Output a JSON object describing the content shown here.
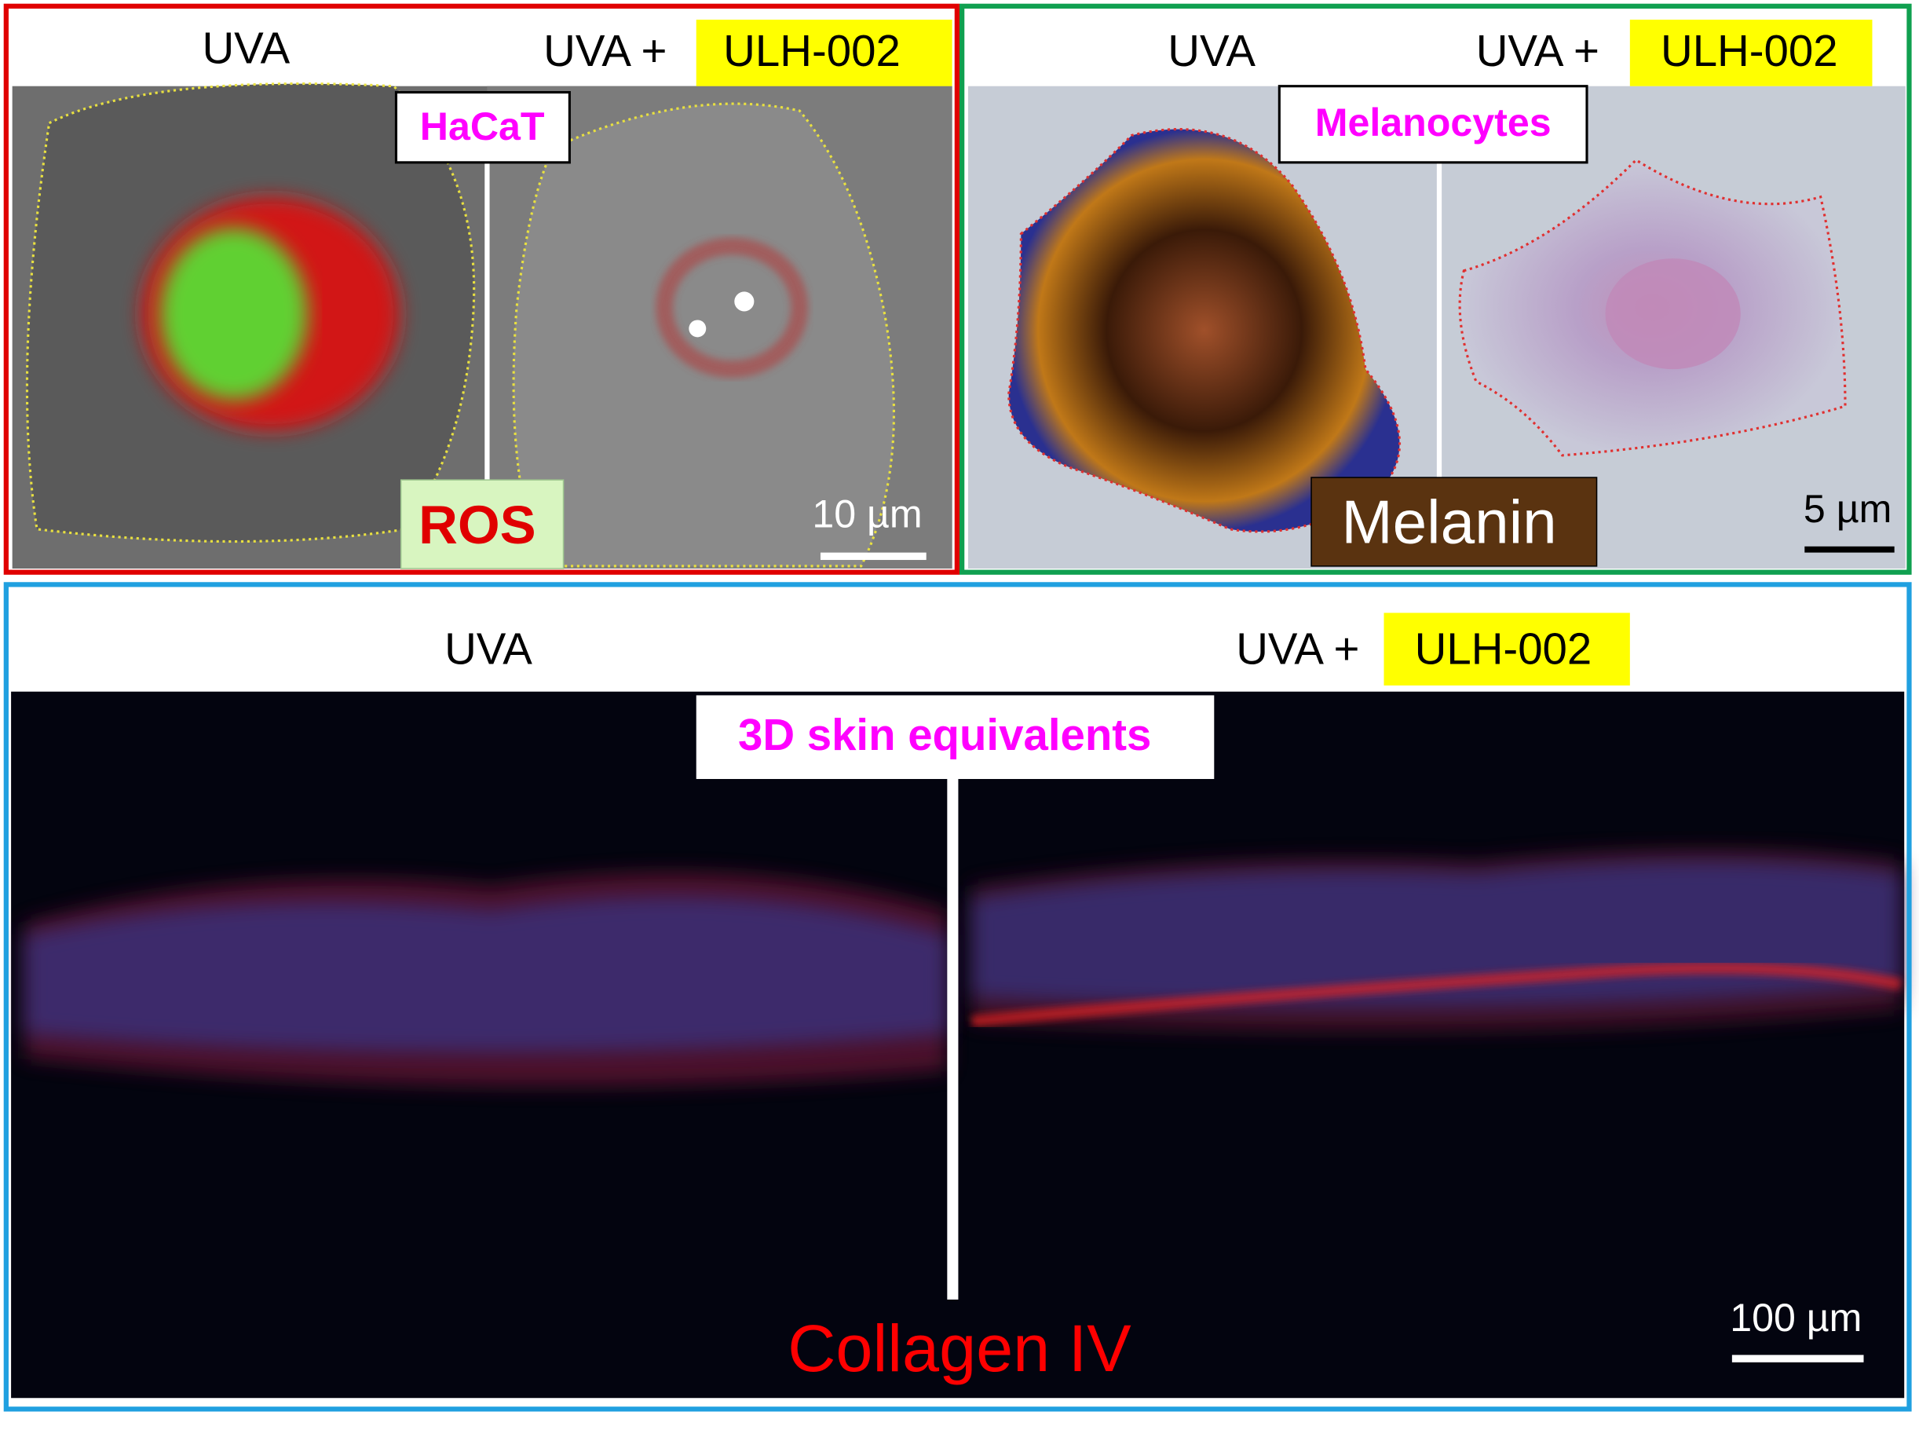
{
  "panels": [
    {
      "left_label": "UVA",
      "right_label": "UVA +",
      "right_highlight": "ULH-002",
      "cell_label": "HaCaT",
      "stain_label": "ROS",
      "scale_bar": "10 µm"
    },
    {
      "left_label": "UVA",
      "right_label": "UVA +",
      "right_highlight": "ULH-002",
      "cell_label": "Melanocytes",
      "stain_label": "Melanin",
      "scale_bar": "5 µm"
    },
    {
      "left_label": "UVA",
      "right_label": "UVA +",
      "right_highlight": "ULH-002",
      "cell_label": "3D skin equivalents",
      "stain_label": "Collagen IV",
      "scale_bar": "100 µm"
    }
  ]
}
